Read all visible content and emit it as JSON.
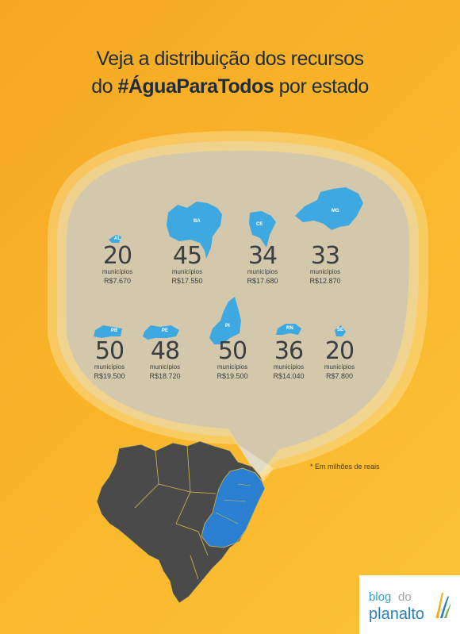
{
  "title": {
    "line1": "Veja a distribuição dos recursos",
    "line2_prefix": "do ",
    "line2_hashtag": "#ÁguaParaTodos",
    "line2_suffix": " por estado"
  },
  "states": [
    {
      "abbr": "AL",
      "count": "20",
      "unit": "municípios",
      "value": "R$7.670"
    },
    {
      "abbr": "BA",
      "count": "45",
      "unit": "municípios",
      "value": "R$17.550"
    },
    {
      "abbr": "CE",
      "count": "34",
      "unit": "municípios",
      "value": "R$17.680"
    },
    {
      "abbr": "MG",
      "count": "33",
      "unit": "municípios",
      "value": "R$12.870"
    },
    {
      "abbr": "PB",
      "count": "50",
      "unit": "municípios",
      "value": "R$19.500"
    },
    {
      "abbr": "PE",
      "count": "48",
      "unit": "municípios",
      "value": "R$18.720"
    },
    {
      "abbr": "PI",
      "count": "50",
      "unit": "municípios",
      "value": "R$19.500"
    },
    {
      "abbr": "RN",
      "count": "36",
      "unit": "municípios",
      "value": "R$14.040"
    },
    {
      "abbr": "SE",
      "count": "20",
      "unit": "municípios",
      "value": "R$7.800"
    }
  ],
  "note": "* Em milhões de reais",
  "logo": {
    "blog": "blog",
    "do": "do",
    "planalto": "planalto"
  },
  "colors": {
    "background": "#f9b52a",
    "state_blue": "#3ea8e0",
    "map_dark": "#4a4a4a",
    "map_highlight": "#2a7fd0",
    "text_dark": "#1f2d3b"
  }
}
